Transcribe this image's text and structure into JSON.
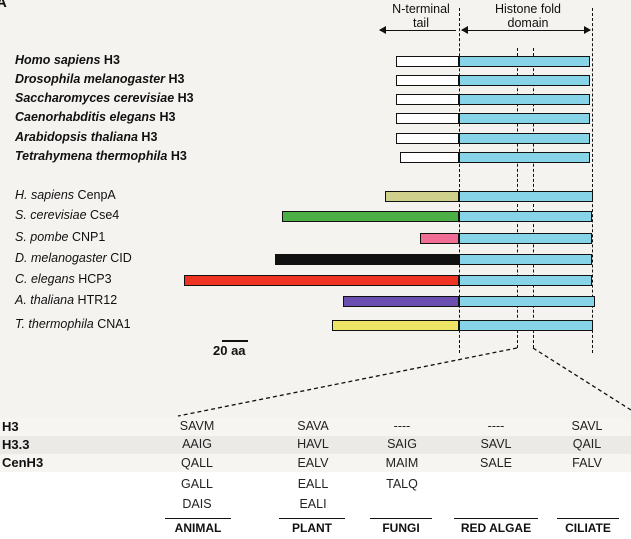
{
  "panel_letter": "A",
  "header": {
    "n_terminal": "N-terminal\ntail",
    "histone_fold": "Histone fold\ndomain"
  },
  "h3_species": [
    {
      "genus": "Homo sapiens",
      "protein": "H3"
    },
    {
      "genus": "Drosophila melanogaster",
      "protein": "H3"
    },
    {
      "genus": "Saccharomyces cerevisiae",
      "protein": "H3"
    },
    {
      "genus": "Caenorhabditis elegans",
      "protein": "H3"
    },
    {
      "genus": "Arabidopsis thaliana",
      "protein": "H3"
    },
    {
      "genus": "Tetrahymena thermophila",
      "protein": "H3"
    }
  ],
  "cenh3_species": [
    {
      "genus": "H. sapiens",
      "protein": "CenpA",
      "color": "#cfd08c"
    },
    {
      "genus": "S. cerevisiae",
      "protein": "Cse4",
      "color": "#4caf45"
    },
    {
      "genus": "S. pombe",
      "protein": "CNP1",
      "color": "#f06e96"
    },
    {
      "genus": "D. melanogaster",
      "protein": "CID",
      "color": "#111111"
    },
    {
      "genus": "C. elegans",
      "protein": "HCP3",
      "color": "#ee3322"
    },
    {
      "genus": "A. thaliana",
      "protein": "HTR12",
      "color": "#6a4fb0"
    },
    {
      "genus": "T. thermophila",
      "protein": "CNA1",
      "color": "#eee566"
    }
  ],
  "histone_fold_color": "#87d3e8",
  "scale_label": "20 aa",
  "table": {
    "row_labels": [
      "H3",
      "H3.3",
      "CenH3"
    ],
    "groups": [
      "ANIMAL",
      "PLANT",
      "FUNGI",
      "RED ALGAE",
      "CILIATE"
    ],
    "columns": [
      [
        "SAVM",
        "AAIG",
        "QALL",
        "GALL",
        "DAIS"
      ],
      [
        "SAVA",
        "HAVL",
        "EALV",
        "EALL",
        "EALI"
      ],
      [
        "----",
        "SAIG",
        "MAIM",
        "TALQ"
      ],
      [
        "----",
        "SAVL",
        "SALE"
      ],
      [
        "SAVL",
        "QAIL",
        "FALV"
      ]
    ]
  }
}
